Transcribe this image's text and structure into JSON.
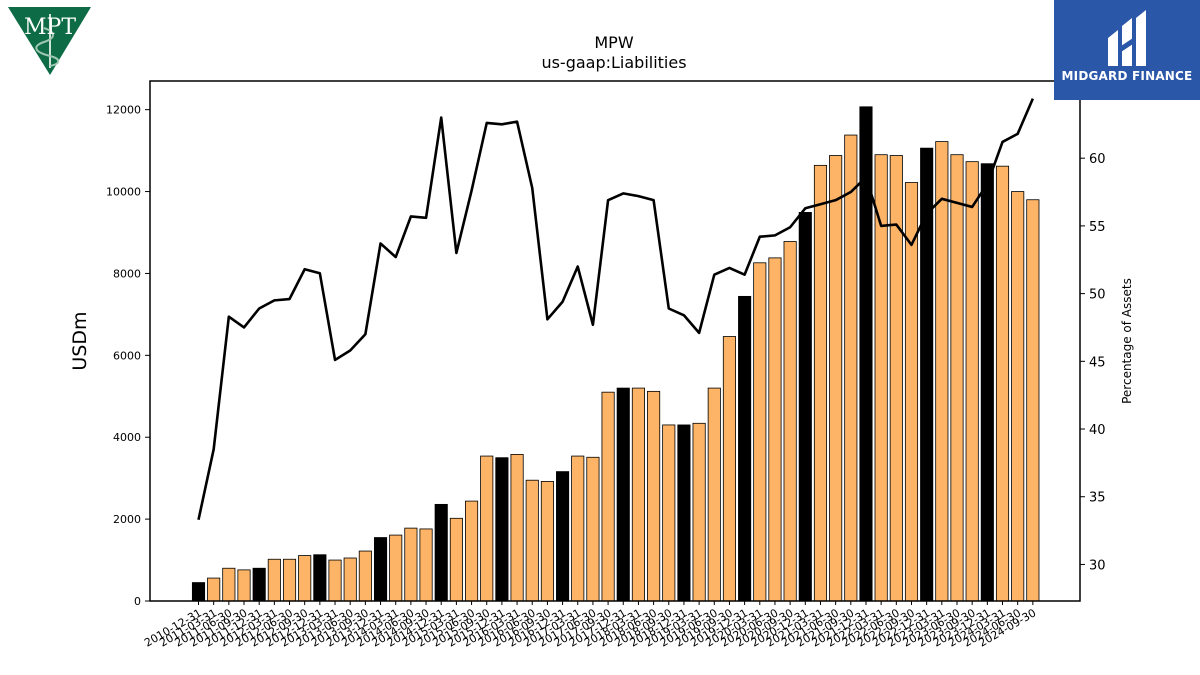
{
  "logos": {
    "left_text": "MPT",
    "right_text": "MIDGARD FINANCE"
  },
  "colors": {
    "bar": "#fdb466",
    "bar_highlight": "#000000",
    "line": "#000000",
    "logo_left": "#0d6b45",
    "logo_right_bg": "#2b57a8"
  },
  "chart_data": {
    "type": "bar",
    "title": "MPW",
    "subtitle": "us-gaap:Liabilities",
    "ylabel": "USDm",
    "y2label": "Percentage of Assets",
    "ylim": [
      0,
      12700
    ],
    "y2lim": [
      27.3,
      65.7
    ],
    "yticks": [
      0,
      2000,
      4000,
      6000,
      8000,
      10000,
      12000
    ],
    "y2ticks": [
      30,
      35,
      40,
      45,
      50,
      55,
      60
    ],
    "grid": false,
    "categories": [
      "2010-12-31",
      "2011-03-31",
      "2011-06-30",
      "2011-09-30",
      "2011-12-31",
      "2012-03-31",
      "2012-06-30",
      "2012-09-30",
      "2012-12-31",
      "2013-03-31",
      "2013-06-30",
      "2013-09-30",
      "2013-12-31",
      "2014-03-31",
      "2014-06-30",
      "2014-09-30",
      "2014-12-31",
      "2015-03-31",
      "2015-06-30",
      "2015-09-30",
      "2015-12-31",
      "2016-03-31",
      "2016-06-30",
      "2016-09-30",
      "2016-12-31",
      "2017-03-31",
      "2017-06-30",
      "2017-09-30",
      "2017-12-31",
      "2018-03-31",
      "2018-06-30",
      "2018-09-30",
      "2018-12-31",
      "2019-03-31",
      "2019-06-30",
      "2019-09-30",
      "2019-12-31",
      "2020-03-31",
      "2020-06-30",
      "2020-09-30",
      "2020-12-31",
      "2021-03-31",
      "2021-06-30",
      "2021-09-30",
      "2021-12-31",
      "2022-03-31",
      "2022-06-30",
      "2022-09-30",
      "2022-12-31",
      "2023-03-31",
      "2023-06-30",
      "2023-09-30",
      "2023-12-31",
      "2024-03-31",
      "2024-06-30",
      "2024-09-30"
    ],
    "series": [
      {
        "name": "Liabilities",
        "type": "bar",
        "values": [
          450,
          560,
          800,
          760,
          800,
          1020,
          1020,
          1110,
          1130,
          1000,
          1050,
          1220,
          1550,
          1610,
          1780,
          1760,
          2360,
          2020,
          2440,
          3540,
          3500,
          3580,
          2950,
          2920,
          3160,
          3540,
          3510,
          5100,
          5200,
          5200,
          5120,
          4300,
          4300,
          4340,
          5200,
          6460,
          7440,
          8260,
          8380,
          8780,
          9490,
          10640,
          10880,
          11380,
          12070,
          10900,
          10880,
          10220,
          11060,
          11220,
          10900,
          10730,
          10680,
          10620,
          10000,
          9800
        ],
        "highlight_indices": [
          0,
          4,
          8,
          12,
          16,
          20,
          24,
          28,
          32,
          36,
          40,
          44,
          48,
          52
        ]
      },
      {
        "name": "Percentage of Assets",
        "type": "line",
        "values": [
          33.3,
          38.5,
          48.3,
          47.5,
          48.9,
          49.5,
          49.6,
          51.8,
          51.5,
          45.1,
          45.8,
          47.0,
          53.7,
          52.7,
          55.7,
          55.6,
          63.0,
          53.0,
          57.6,
          62.6,
          62.5,
          62.7,
          57.8,
          48.1,
          49.4,
          52.0,
          47.7,
          56.9,
          57.4,
          57.2,
          56.9,
          48.9,
          48.4,
          47.1,
          51.4,
          51.9,
          51.4,
          54.2,
          54.3,
          54.9,
          56.3,
          56.6,
          56.9,
          57.5,
          58.6,
          55.0,
          55.1,
          53.6,
          55.9,
          57.0,
          56.7,
          56.4,
          58.1,
          61.2,
          61.8,
          64.4
        ]
      }
    ]
  }
}
